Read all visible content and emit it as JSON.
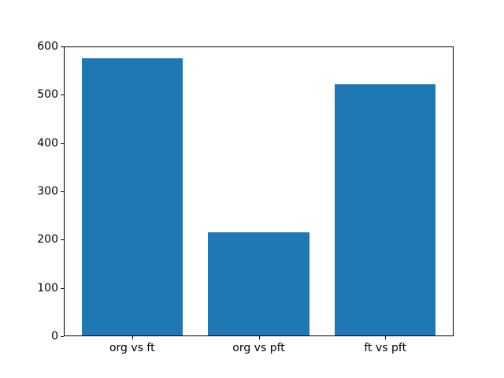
{
  "figure": {
    "background_color": "#ffffff",
    "text_color": "#000000",
    "spine_color": "#000000"
  },
  "chart_data": {
    "type": "bar",
    "categories": [
      "org vs ft",
      "org vs pft",
      "ft vs pft"
    ],
    "values": [
      575,
      216,
      521
    ],
    "bar_color": "#1f77b4",
    "ylim": [
      0,
      600
    ],
    "yticks": [
      0,
      100,
      200,
      300,
      400,
      500,
      600
    ],
    "xlim": [
      -0.54,
      2.54
    ],
    "bar_width": 0.8,
    "grid": false,
    "legend": "none",
    "title": "",
    "xlabel": "",
    "ylabel": ""
  }
}
